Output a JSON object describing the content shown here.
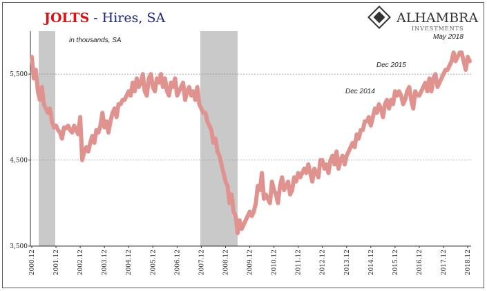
{
  "chart_data": {
    "type": "line",
    "title": "JOLTS",
    "subtitle": "- Hires, SA",
    "logo": {
      "name": "ALHAMBRA",
      "tagline": "INVESTMENTS"
    },
    "annotations": [
      "in thousands, SA",
      "Dec 2015",
      "Dec 2014",
      "May 2018"
    ],
    "color": "#e0938e",
    "categories": [
      "2000.12",
      null,
      null,
      null,
      null,
      null,
      null,
      null,
      null,
      null,
      null,
      null,
      "2001.12",
      null,
      null,
      null,
      null,
      null,
      null,
      null,
      null,
      null,
      null,
      null,
      "2002.12",
      null,
      null,
      null,
      null,
      null,
      null,
      null,
      null,
      null,
      null,
      null,
      "2003.12",
      null,
      null,
      null,
      null,
      null,
      null,
      null,
      null,
      null,
      null,
      null,
      "2004.12",
      null,
      null,
      null,
      null,
      null,
      null,
      null,
      null,
      null,
      null,
      null,
      "2005.12",
      null,
      null,
      null,
      null,
      null,
      null,
      null,
      null,
      null,
      null,
      null,
      "2006.12",
      null,
      null,
      null,
      null,
      null,
      null,
      null,
      null,
      null,
      null,
      null,
      "2007.12",
      null,
      null,
      null,
      null,
      null,
      null,
      null,
      null,
      null,
      null,
      null,
      "2008.12",
      null,
      null,
      null,
      null,
      null,
      null,
      null,
      null,
      null,
      null,
      null,
      "2009.12",
      null,
      null,
      null,
      null,
      null,
      null,
      null,
      null,
      null,
      null,
      null,
      "2010.12",
      null,
      null,
      null,
      null,
      null,
      null,
      null,
      null,
      null,
      null,
      null,
      "2011.12",
      null,
      null,
      null,
      null,
      null,
      null,
      null,
      null,
      null,
      null,
      null,
      "2012.12",
      null,
      null,
      null,
      null,
      null,
      null,
      null,
      null,
      null,
      null,
      null,
      "2013.12",
      null,
      null,
      null,
      null,
      null,
      null,
      null,
      null,
      null,
      null,
      null,
      "2014.12",
      null,
      null,
      null,
      null,
      null,
      null,
      null,
      null,
      null,
      null,
      null,
      "2015.12",
      null,
      null,
      null,
      null,
      null,
      null,
      null,
      null,
      null,
      null,
      null,
      "2016.12",
      null,
      null,
      null,
      null,
      null,
      null,
      null,
      null,
      null,
      null,
      null,
      "2017.12",
      null,
      null,
      null,
      null,
      null,
      null,
      null,
      null,
      null,
      null,
      null,
      "2018.12",
      null
    ],
    "values": [
      5700,
      5450,
      5550,
      5300,
      5200,
      5350,
      5150,
      5100,
      5050,
      5100,
      4950,
      4880,
      4900,
      4850,
      4820,
      4750,
      4880,
      4870,
      4900,
      4850,
      4820,
      4900,
      4850,
      4800,
      5000,
      4500,
      4600,
      4650,
      4600,
      4700,
      4780,
      4700,
      4850,
      4820,
      4900,
      5050,
      4880,
      4950,
      4820,
      4950,
      5050,
      5100,
      5000,
      5150,
      5150,
      5200,
      5200,
      5250,
      5300,
      5250,
      5400,
      5300,
      5450,
      5350,
      5400,
      5500,
      5300,
      5250,
      5450,
      5500,
      5350,
      5300,
      5450,
      5400,
      5500,
      5350,
      5450,
      5300,
      5250,
      5400,
      5350,
      5450,
      5250,
      5300,
      5350,
      5400,
      5200,
      5300,
      5350,
      5250,
      5300,
      5200,
      5350,
      5150,
      5100,
      5050,
      5050,
      4950,
      4900,
      4850,
      4700,
      4750,
      4600,
      4550,
      4450,
      4350,
      4250,
      4200,
      4000,
      4100,
      3900,
      3850,
      3650,
      3800,
      3700,
      3750,
      3800,
      3850,
      3900,
      3850,
      3900,
      4000,
      4200,
      4150,
      4350,
      4050,
      4100,
      4050,
      4000,
      4250,
      4150,
      4100,
      4000,
      4200,
      4300,
      4150,
      4200,
      4250,
      4100,
      4150,
      4300,
      4250,
      4350,
      4300,
      4350,
      4400,
      4350,
      4450,
      4350,
      4250,
      4400,
      4350,
      4300,
      4500,
      4500,
      4400,
      4450,
      4350,
      4500,
      4550,
      4450,
      4600,
      4400,
      4500,
      4550,
      4450,
      4550,
      4600,
      4650,
      4700,
      4650,
      4800,
      4750,
      4850,
      4850,
      4950,
      4950,
      5000,
      4900,
      5000,
      5100,
      5050,
      5150,
      5100,
      5000,
      5150,
      5200,
      5100,
      5200,
      5150,
      5300,
      5250,
      5300,
      5250,
      5150,
      5200,
      5300,
      5350,
      5200,
      5100,
      5300,
      5250,
      5250,
      5300,
      5350,
      5400,
      5300,
      5450,
      5300,
      5450,
      5500,
      5350,
      5400,
      5450,
      5500,
      5550,
      5550,
      5600,
      5650,
      5750,
      5650,
      5700,
      5750,
      5750,
      5650,
      5550,
      5700,
      5650
    ],
    "ylim": [
      3500,
      6000
    ],
    "yticks": [
      {
        "value": 3500,
        "label": "3,500"
      },
      {
        "value": 4500,
        "label": "4,500"
      },
      {
        "value": 5500,
        "label": "5,500"
      }
    ],
    "grid": true
  }
}
